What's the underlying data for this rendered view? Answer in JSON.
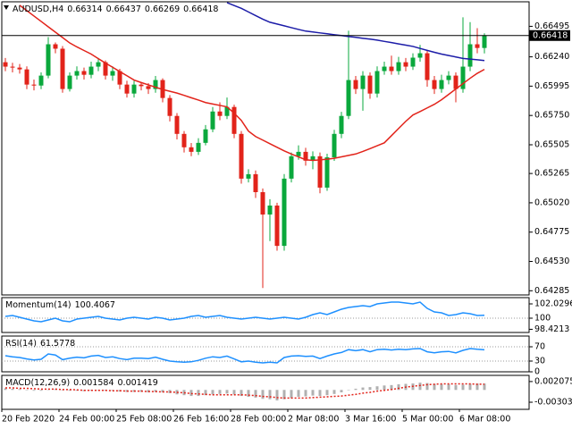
{
  "chart_data": [
    {
      "type": "candlestick",
      "title": "AUDUSD,H4",
      "title_values": [
        0.66314,
        0.66437,
        0.66269,
        0.66418
      ],
      "categories": [
        "20 Feb 2020",
        null,
        null,
        null,
        null,
        null,
        null,
        null,
        "24 Feb 00:00",
        null,
        null,
        null,
        null,
        null,
        null,
        null,
        "25 Feb 08:00",
        null,
        null,
        null,
        null,
        null,
        null,
        null,
        "26 Feb 16:00",
        null,
        null,
        null,
        null,
        null,
        null,
        null,
        "28 Feb 00:00",
        null,
        null,
        null,
        null,
        null,
        null,
        null,
        "2 Mar 08:00",
        null,
        null,
        null,
        null,
        null,
        null,
        null,
        "3 Mar 16:00",
        null,
        null,
        null,
        null,
        null,
        null,
        null,
        "5 Mar 00:00",
        null,
        null,
        null,
        null,
        null,
        null,
        null,
        "6 Mar 08:00",
        null,
        null,
        null
      ],
      "open": [
        0.66195,
        0.66158,
        0.6615,
        0.66135,
        0.66008,
        0.66,
        0.66083,
        0.66345,
        0.66308,
        0.65971,
        0.66083,
        0.66121,
        0.6609,
        0.66158,
        0.66195,
        0.66083,
        0.66121,
        0.66008,
        0.65933,
        0.66008,
        0.65995,
        0.65971,
        0.66046,
        0.65896,
        0.65746,
        0.65596,
        0.65484,
        0.65446,
        0.65521,
        0.65634,
        0.65783,
        0.65746,
        0.65821,
        0.65596,
        0.65222,
        0.65259,
        0.65109,
        0.64922,
        0.64997,
        0.6466,
        0.65222,
        0.65409,
        0.65446,
        0.65372,
        0.65409,
        0.65147,
        0.654,
        0.65596,
        0.65746,
        0.66046,
        0.65971,
        0.66083,
        0.65933,
        0.66121,
        0.66158,
        0.66121,
        0.66195,
        0.66158,
        0.66233,
        0.6627,
        0.66046,
        0.65971,
        0.66046,
        0.66083,
        0.65971,
        0.66158,
        0.66345,
        0.66314
      ],
      "high": [
        0.6623,
        0.6619,
        0.6618,
        0.6616,
        0.6605,
        0.6611,
        0.66405,
        0.6636,
        0.6633,
        0.6611,
        0.6616,
        0.6615,
        0.662,
        0.6623,
        0.6621,
        0.6616,
        0.6614,
        0.6604,
        0.6604,
        0.6603,
        0.6602,
        0.6608,
        0.6606,
        0.6592,
        0.6577,
        0.6562,
        0.6552,
        0.6556,
        0.6567,
        0.6582,
        0.6586,
        0.659,
        0.6584,
        0.6562,
        0.653,
        0.6529,
        0.6514,
        0.6505,
        0.6502,
        0.6526,
        0.6544,
        0.655,
        0.6548,
        0.6545,
        0.6544,
        0.6543,
        0.6563,
        0.6578,
        0.66458,
        0.6608,
        0.6612,
        0.6611,
        0.6616,
        0.662,
        0.6625,
        0.6624,
        0.6623,
        0.6627,
        0.6634,
        0.6629,
        0.6608,
        0.6609,
        0.6612,
        0.6611,
        0.6657,
        0.6653,
        0.6648,
        0.66437
      ],
      "low": [
        0.6612,
        0.6611,
        0.661,
        0.6597,
        0.6596,
        0.6597,
        0.6606,
        0.6627,
        0.6594,
        0.6595,
        0.6605,
        0.6605,
        0.6606,
        0.6612,
        0.6605,
        0.6604,
        0.6597,
        0.659,
        0.659,
        0.6596,
        0.6593,
        0.6594,
        0.6586,
        0.657,
        0.6555,
        0.6544,
        0.6541,
        0.6542,
        0.655,
        0.6561,
        0.6571,
        0.6572,
        0.6556,
        0.6518,
        0.6519,
        0.6506,
        0.64308,
        0.647,
        0.6462,
        0.6462,
        0.6519,
        0.6538,
        0.6533,
        0.653,
        0.651,
        0.6512,
        0.6537,
        0.6556,
        0.6572,
        0.6593,
        0.6579,
        0.6589,
        0.659,
        0.6609,
        0.6609,
        0.6609,
        0.6612,
        0.6613,
        0.662,
        0.6599,
        0.6593,
        0.6594,
        0.6601,
        0.6586,
        0.6594,
        0.6612,
        0.6627,
        0.66269
      ],
      "close": [
        0.66158,
        0.6615,
        0.66135,
        0.66008,
        0.66,
        0.66083,
        0.66345,
        0.66308,
        0.65971,
        0.66083,
        0.66121,
        0.6609,
        0.66158,
        0.66195,
        0.66083,
        0.66121,
        0.66008,
        0.65933,
        0.66008,
        0.65995,
        0.65971,
        0.66046,
        0.65896,
        0.65746,
        0.65596,
        0.65484,
        0.65446,
        0.65521,
        0.65634,
        0.65783,
        0.65746,
        0.65821,
        0.65596,
        0.65222,
        0.65259,
        0.65109,
        0.64922,
        0.64997,
        0.6466,
        0.65222,
        0.65409,
        0.65446,
        0.65372,
        0.65409,
        0.65147,
        0.654,
        0.65596,
        0.65746,
        0.66046,
        0.65971,
        0.66083,
        0.65933,
        0.66121,
        0.66158,
        0.66121,
        0.66195,
        0.66158,
        0.66233,
        0.6627,
        0.66046,
        0.65971,
        0.66046,
        0.66083,
        0.65971,
        0.66158,
        0.66345,
        0.66314,
        0.66418
      ],
      "up_color": "#0aa83c",
      "down_color": "#e2231a",
      "lines": [
        {
          "color": "#e2231a",
          "values": [
            null,
            null,
            0.66671,
            0.66626,
            0.66581,
            0.66536,
            0.66491,
            0.66446,
            0.66401,
            0.66356,
            0.66323,
            0.66293,
            0.66263,
            0.66225,
            0.66188,
            0.66153,
            0.66117,
            0.66082,
            0.66046,
            0.66025,
            0.66006,
            0.65986,
            0.65967,
            0.65952,
            0.65937,
            0.65918,
            0.65898,
            0.65879,
            0.65858,
            0.65846,
            0.65834,
            0.65822,
            0.65769,
            0.65709,
            0.65619,
            0.65574,
            0.65544,
            0.65514,
            0.65484,
            0.65454,
            0.65428,
            0.65404,
            0.6538,
            0.65374,
            0.65379,
            0.65384,
            0.65392,
            0.65404,
            0.65416,
            0.65428,
            0.65449,
            0.65473,
            0.65497,
            0.65521,
            0.65581,
            0.65641,
            0.65701,
            0.65754,
            0.65783,
            0.65813,
            0.65843,
            0.65881,
            0.65926,
            0.65971,
            0.66016,
            0.66061,
            0.66102,
            0.66135
          ]
        },
        {
          "color": "#1c1ca8",
          "values": [
            null,
            null,
            null,
            null,
            null,
            null,
            null,
            null,
            null,
            null,
            null,
            null,
            null,
            null,
            null,
            null,
            null,
            null,
            null,
            null,
            null,
            null,
            null,
            null,
            null,
            null,
            null,
            null,
            null,
            null,
            null,
            0.66693,
            0.66669,
            0.66645,
            0.66615,
            0.66585,
            0.66555,
            0.66529,
            0.66514,
            0.66499,
            0.66484,
            0.66469,
            0.66455,
            0.66448,
            0.6644,
            0.66433,
            0.66425,
            0.66418,
            0.6641,
            0.66403,
            0.66395,
            0.66388,
            0.6638,
            0.66369,
            0.66359,
            0.66348,
            0.66338,
            0.66327,
            0.6631,
            0.66294,
            0.66278,
            0.66263,
            0.66251,
            0.66239,
            0.66227,
            0.66221,
            0.66215,
            0.66209
          ]
        }
      ],
      "ylim": [
        0.6425,
        0.667
      ],
      "yticks": [
        0.66495,
        {
          "value": 0.6624,
          "label": "0.66240"
        },
        0.65995,
        {
          "value": 0.6575,
          "label": "0.65750"
        },
        0.65505,
        0.65265,
        {
          "value": 0.6502,
          "label": "0.65020"
        },
        0.64775,
        {
          "value": 0.6453,
          "label": "0.64530"
        },
        0.64285
      ]
    },
    {
      "type": "line",
      "title": "Momentum(14)",
      "series": [
        {
          "color": "#1e90ff",
          "values": [
            100.25,
            100.38,
            100.13,
            99.87,
            99.62,
            99.49,
            99.75,
            100.0,
            99.62,
            99.49,
            99.87,
            100.0,
            100.13,
            100.25,
            100.0,
            99.87,
            99.75,
            100.0,
            100.13,
            100.0,
            99.87,
            100.13,
            100.0,
            99.75,
            99.87,
            100.0,
            100.25,
            100.38,
            100.13,
            100.25,
            100.38,
            100.13,
            100.0,
            99.87,
            100.0,
            100.13,
            100.0,
            99.87,
            100.0,
            100.13,
            100.0,
            99.87,
            100.13,
            100.51,
            100.76,
            100.51,
            100.89,
            101.27,
            101.52,
            101.65,
            101.78,
            101.65,
            102.03,
            102.16,
            102.28,
            102.28,
            102.16,
            102.03,
            102.28,
            101.39,
            100.89,
            100.76,
            100.38,
            100.51,
            100.76,
            100.63,
            100.38,
            100.4067
          ]
        }
      ],
      "ylim": [
        97.97,
        102.92
      ],
      "yticks": [
        102.0296,
        100,
        98.4213
      ],
      "levels": [
        100
      ]
    },
    {
      "type": "line",
      "title": "RSI(14)",
      "series": [
        {
          "color": "#1e90ff",
          "values": [
            45,
            42,
            40,
            36,
            33,
            35,
            50,
            47,
            34,
            38,
            41,
            39,
            44,
            46,
            40,
            42,
            37,
            34,
            38,
            38,
            37,
            41,
            35,
            30,
            28,
            27,
            28,
            32,
            38,
            42,
            40,
            44,
            36,
            28,
            30,
            27,
            25,
            27,
            25,
            40,
            44,
            45,
            43,
            44,
            37,
            44,
            50,
            54,
            62,
            59,
            62,
            56,
            62,
            63,
            61,
            63,
            62,
            64,
            65,
            56,
            53,
            56,
            57,
            53,
            60,
            65,
            63,
            61.5778
          ]
        }
      ],
      "ylim": [
        0,
        100
      ],
      "yticks": [
        70,
        30,
        0
      ],
      "levels": [
        70,
        30
      ]
    },
    {
      "type": "macd",
      "title": "MACD(12,26,9)",
      "series": [
        {
          "type": "bar",
          "color": "#b0b0b0",
          "values": [
            0.0004,
            0.0003,
            0.0002,
            0.0,
            -0.0002,
            -0.0002,
            0.0001,
            0.0002,
            -0.0001,
            -0.0002,
            -0.0002,
            -0.0003,
            -0.0002,
            -0.0001,
            -0.0002,
            -0.0002,
            -0.0004,
            -0.0005,
            -0.0005,
            -0.0005,
            -0.0006,
            -0.0005,
            -0.0006,
            -0.0008,
            -0.0011,
            -0.0013,
            -0.0015,
            -0.0015,
            -0.0013,
            -0.0011,
            -0.001,
            -0.0009,
            -0.0011,
            -0.0015,
            -0.0017,
            -0.0019,
            -0.0022,
            -0.0023,
            -0.0026,
            -0.0023,
            -0.002,
            -0.0017,
            -0.0016,
            -0.0014,
            -0.0015,
            -0.0013,
            -0.001,
            -0.0006,
            0.0,
            0.0003,
            0.0006,
            0.0007,
            0.0009,
            0.0011,
            0.0012,
            0.0014,
            0.0015,
            0.0016,
            0.0018,
            0.0017,
            0.0015,
            0.0014,
            0.0014,
            0.0012,
            0.0013,
            0.0015,
            0.0016,
            0.001584
          ]
        },
        {
          "type": "line",
          "color": "#e2231a",
          "values": [
            0.0005,
            0.0005,
            0.0004,
            0.0004,
            0.0003,
            0.0002,
            0.0002,
            0.0002,
            0.0001,
            0.0001,
            0.0,
            -0.0001,
            -0.0001,
            -0.0001,
            -0.0001,
            -0.0002,
            -0.0002,
            -0.0003,
            -0.0003,
            -0.0003,
            -0.0004,
            -0.0004,
            -0.0005,
            -0.0005,
            -0.0006,
            -0.0007,
            -0.0009,
            -0.001,
            -0.0011,
            -0.0012,
            -0.0012,
            -0.0012,
            -0.0012,
            -0.0012,
            -0.0013,
            -0.0014,
            -0.0016,
            -0.0017,
            -0.0019,
            -0.002,
            -0.002,
            -0.002,
            -0.002,
            -0.0019,
            -0.0018,
            -0.0017,
            -0.0016,
            -0.0015,
            -0.0013,
            -0.0011,
            -0.0008,
            -0.0006,
            -0.0003,
            -0.0001,
            0.0001,
            0.0004,
            0.0007,
            0.0009,
            0.0011,
            0.0013,
            0.0014,
            0.0015,
            0.0015,
            0.0015,
            0.0015,
            0.0015,
            0.0014,
            0.001419
          ]
        }
      ],
      "ylim": [
        -0.0048,
        0.0036
      ],
      "yticks": [
        0.002075,
        -0.003039
      ]
    }
  ]
}
